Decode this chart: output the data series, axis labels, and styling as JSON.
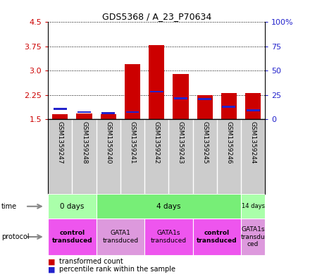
{
  "title": "GDS5368 / A_23_P70634",
  "samples": [
    "GSM1359247",
    "GSM1359248",
    "GSM1359240",
    "GSM1359241",
    "GSM1359242",
    "GSM1359243",
    "GSM1359245",
    "GSM1359246",
    "GSM1359244"
  ],
  "transformed_counts": [
    1.65,
    1.68,
    1.66,
    3.2,
    3.8,
    2.9,
    2.24,
    2.3,
    2.3
  ],
  "percentile_values": [
    1.82,
    1.72,
    1.69,
    1.72,
    2.35,
    2.15,
    2.12,
    1.88,
    1.78
  ],
  "bar_bottom": 1.5,
  "ylim": [
    1.5,
    4.5
  ],
  "yticks_left": [
    1.5,
    2.25,
    3.0,
    3.75,
    4.5
  ],
  "yticks_right_labels": [
    "0",
    "25",
    "50",
    "75",
    "100%"
  ],
  "yticks_right_vals": [
    0,
    25,
    50,
    75,
    100
  ],
  "bar_color": "#cc0000",
  "percentile_color": "#2222cc",
  "bar_width": 0.65,
  "time_groups": [
    {
      "label": "0 days",
      "start": 0,
      "end": 2,
      "color": "#aaffaa"
    },
    {
      "label": "4 days",
      "start": 2,
      "end": 8,
      "color": "#77ee77"
    },
    {
      "label": "14 days",
      "start": 8,
      "end": 9,
      "color": "#aaffaa"
    }
  ],
  "protocol_groups": [
    {
      "label": "control\ntransduced",
      "start": 0,
      "end": 2,
      "color": "#ee55ee",
      "bold": true
    },
    {
      "label": "GATA1\ntransduced",
      "start": 2,
      "end": 4,
      "color": "#dd99dd",
      "bold": false
    },
    {
      "label": "GATA1s\ntransduced",
      "start": 4,
      "end": 6,
      "color": "#ee55ee",
      "bold": false
    },
    {
      "label": "control\ntransduced",
      "start": 6,
      "end": 8,
      "color": "#ee55ee",
      "bold": true
    },
    {
      "label": "GATA1s\ntransdu\nced",
      "start": 8,
      "end": 9,
      "color": "#dd99dd",
      "bold": false
    }
  ],
  "ylabel_left_color": "#cc0000",
  "ylabel_right_color": "#2222cc",
  "grid_color": "#000000",
  "bg_sample_row": "#cccccc",
  "sample_row_bg": "#dddddd"
}
